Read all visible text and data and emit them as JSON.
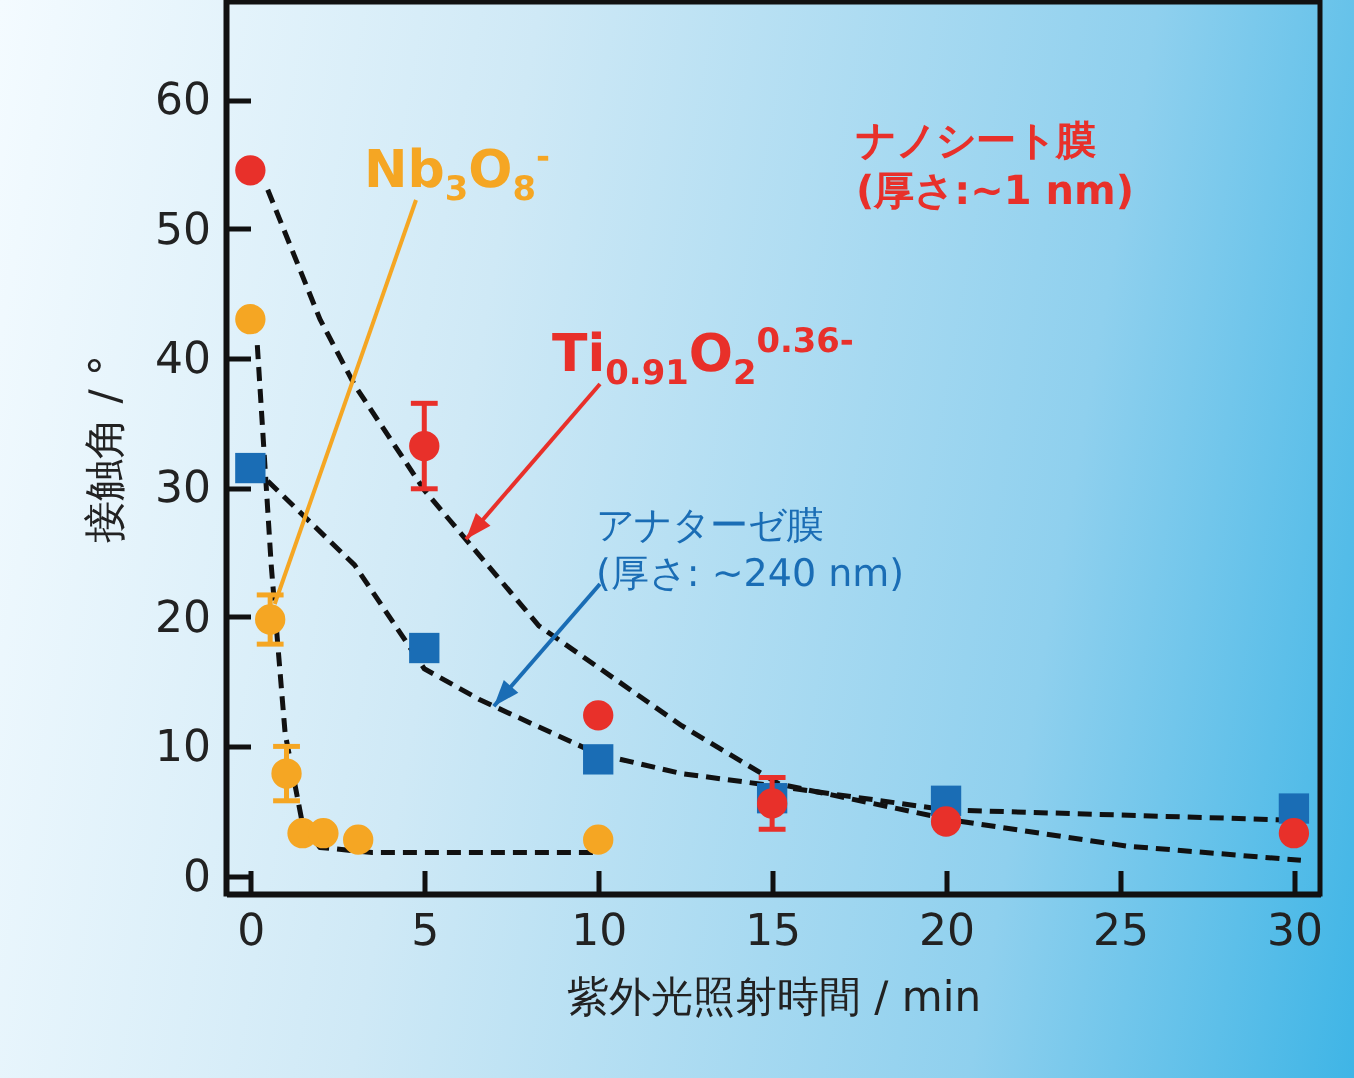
{
  "chart_data": {
    "type": "scatter",
    "xlabel": "紫外光照射時間 / min",
    "ylabel": "接触角 / °",
    "xlim": [
      -0.7,
      30.75
    ],
    "ylim": [
      -1.4,
      67.5
    ],
    "xticks": [
      0,
      5,
      10,
      15,
      20,
      25,
      30
    ],
    "yticks": [
      0,
      10,
      20,
      30,
      40,
      50,
      60
    ],
    "series": [
      {
        "color": "#1a6db5",
        "marker": "square",
        "x": [
          0,
          5,
          10,
          15,
          20,
          30
        ],
        "values": [
          31.5,
          17.6,
          9.0,
          6.0,
          5.8,
          5.2
        ]
      },
      {
        "color": "#e8302a",
        "marker": "circle",
        "x": [
          0,
          5,
          10,
          15,
          20,
          30
        ],
        "values": [
          54.5,
          33.2,
          12.4,
          5.6,
          4.2,
          3.3
        ],
        "errors": [
          null,
          3.3,
          null,
          2,
          null,
          null
        ]
      },
      {
        "color": "#f5a623",
        "marker": "circle",
        "x": [
          0,
          0.57,
          1.04,
          1.5,
          2.1,
          3.1,
          10
        ],
        "values": [
          43,
          19.8,
          7.9,
          3.3,
          3.3,
          2.8,
          2.8
        ],
        "errors": [
          null,
          1.9,
          2.1,
          null,
          null,
          null,
          null
        ]
      },
      {
        "type": "line",
        "color": "#111111",
        "marker": "none",
        "line_style": "dashed",
        "x": [
          0.5,
          2,
          3,
          5,
          8.3,
          12.4,
          15.2,
          20.2,
          25.2,
          30.2
        ],
        "values": [
          53,
          43,
          37.9,
          29.8,
          19.3,
          11.6,
          7.1,
          4.3,
          2.3,
          1.2
        ]
      },
      {
        "type": "line",
        "color": "#111111",
        "marker": "none",
        "line_style": "dashed",
        "x": [
          0.5,
          3,
          5,
          6.6,
          10,
          12.4,
          15.2,
          20,
          30
        ],
        "values": [
          30.5,
          24,
          16,
          13.6,
          9.4,
          7.9,
          6.9,
          5.1,
          4.3
        ]
      },
      {
        "type": "line",
        "color": "#111111",
        "marker": "none",
        "line_style": "dashed",
        "x": [
          0.2,
          0.6,
          1.0,
          1.5,
          2.0,
          3.5,
          10
        ],
        "values": [
          41,
          24,
          11,
          4,
          2.2,
          1.8,
          1.8
        ]
      }
    ],
    "annotations": [
      {
        "text": "Nb$_{3}$O$_{8}$$^{-}$",
        "x": 0.7,
        "y": 21
      },
      {
        "text": "Ti$_{0.91}$O$_{2}$$^{0.36-}$",
        "x": 6.2,
        "y": 26
      },
      {
        "text": "アナターゼ膜\n(厚さ: ~240 nm)",
        "x": 7,
        "y": 13.1
      },
      "ナノシート膜\n(厚さ:~1 nm)"
    ]
  }
}
